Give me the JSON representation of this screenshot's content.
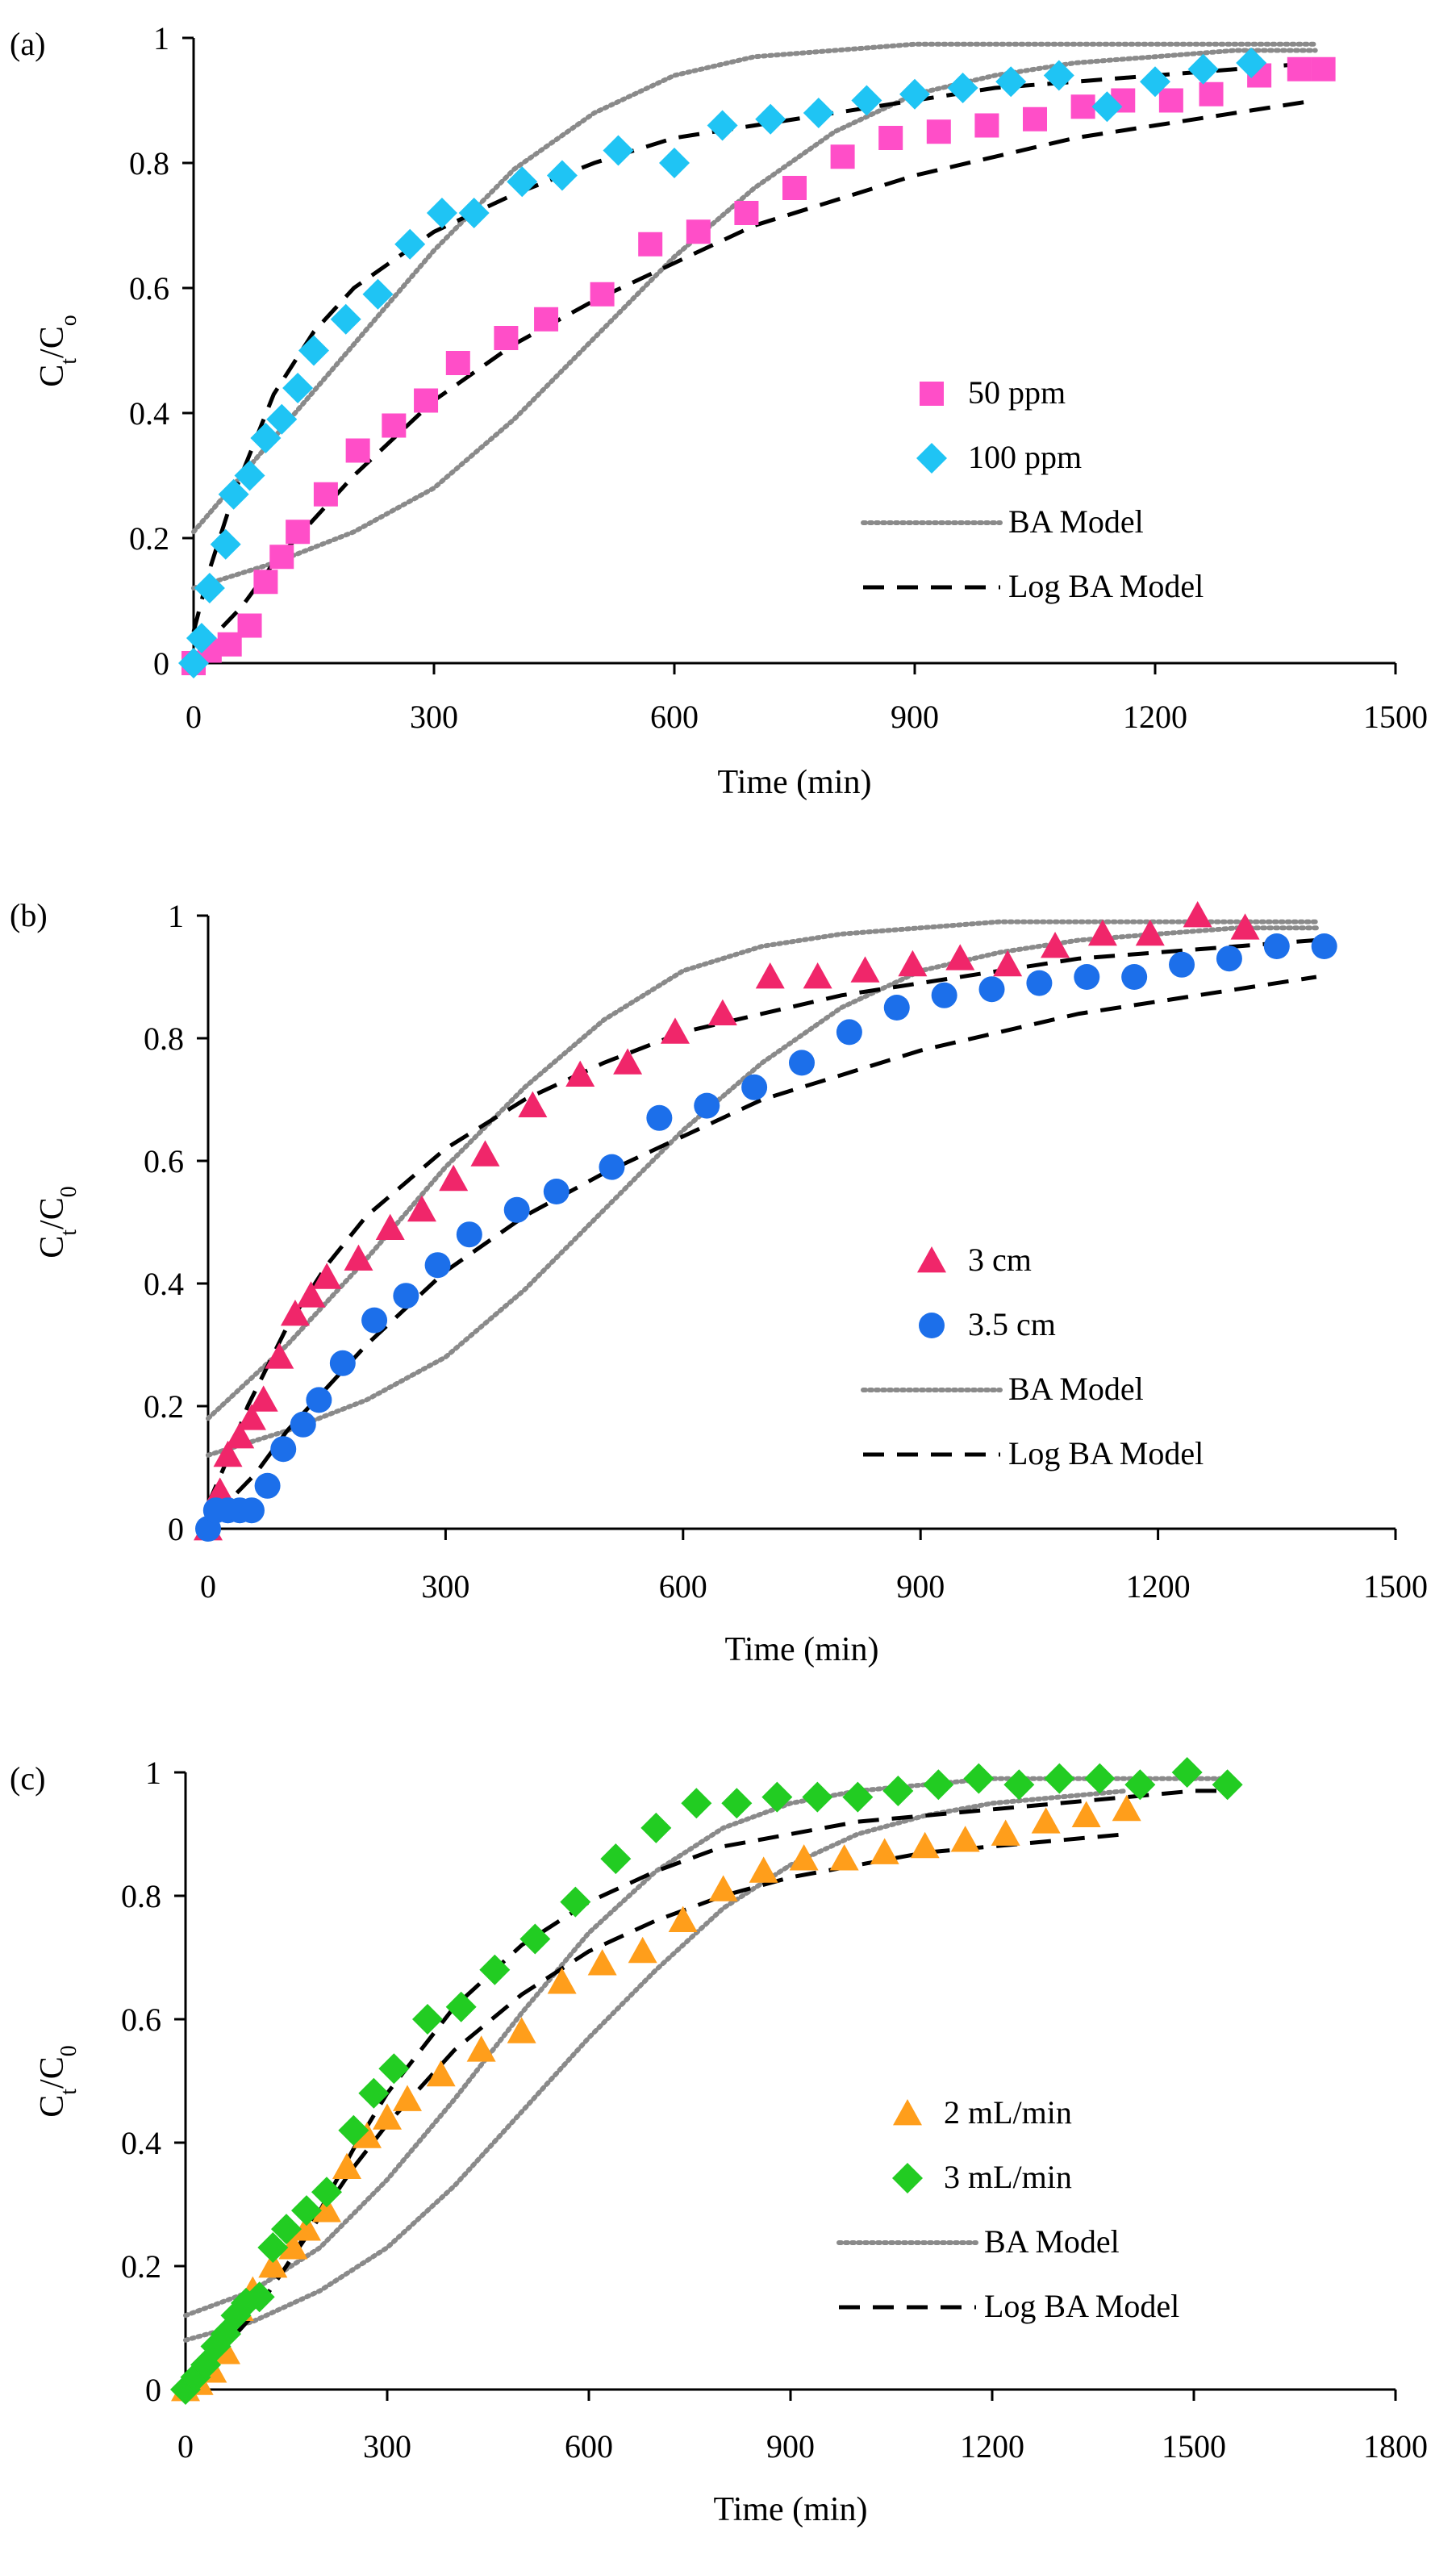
{
  "figure": {
    "panels": [
      "(a)",
      "(b)",
      "(c)"
    ]
  },
  "chart_data": [
    {
      "type": "scatter",
      "panel_label": "(a)",
      "title": "",
      "xlabel": "Time (min)",
      "ylabel_main": "C",
      "ylabel_sub1": "t",
      "ylabel_sep": "/C",
      "ylabel_sub2": "o",
      "xlim": [
        0,
        1500
      ],
      "ylim": [
        0,
        1
      ],
      "xticks": [
        0,
        300,
        600,
        900,
        1200,
        1500
      ],
      "yticks": [
        0,
        0.2,
        0.4,
        0.6,
        0.8,
        1
      ],
      "xtick_labels": [
        "0",
        "300",
        "600",
        "900",
        "1200",
        "1500"
      ],
      "ytick_labels": [
        "0",
        "0.2",
        "0.4",
        "0.6",
        "0.8",
        "1"
      ],
      "legend_position": "right-center",
      "series": [
        {
          "name": "50 ppm",
          "marker": "square",
          "color": "#ff4ec8",
          "x": [
            0,
            20,
            45,
            70,
            90,
            110,
            130,
            165,
            205,
            250,
            290,
            330,
            390,
            440,
            510,
            570,
            630,
            690,
            750,
            810,
            870,
            930,
            990,
            1050,
            1110,
            1160,
            1220,
            1270,
            1330,
            1380,
            1410
          ],
          "y": [
            0,
            0.02,
            0.03,
            0.06,
            0.13,
            0.17,
            0.21,
            0.27,
            0.34,
            0.38,
            0.42,
            0.48,
            0.52,
            0.55,
            0.59,
            0.67,
            0.69,
            0.72,
            0.76,
            0.81,
            0.84,
            0.85,
            0.86,
            0.87,
            0.89,
            0.9,
            0.9,
            0.91,
            0.94,
            0.95,
            0.95
          ]
        },
        {
          "name": "100 ppm",
          "marker": "diamond",
          "color": "#1fc4f4",
          "x": [
            0,
            10,
            20,
            40,
            50,
            70,
            90,
            110,
            130,
            150,
            190,
            230,
            270,
            310,
            350,
            410,
            460,
            530,
            600,
            660,
            720,
            780,
            840,
            900,
            960,
            1020,
            1080,
            1140,
            1200,
            1260,
            1320
          ],
          "y": [
            0,
            0.04,
            0.12,
            0.19,
            0.27,
            0.3,
            0.36,
            0.39,
            0.44,
            0.5,
            0.55,
            0.59,
            0.67,
            0.72,
            0.72,
            0.77,
            0.78,
            0.82,
            0.8,
            0.86,
            0.87,
            0.88,
            0.9,
            0.91,
            0.92,
            0.93,
            0.94,
            0.89,
            0.93,
            0.95,
            0.96
          ]
        },
        {
          "name": "BA Model",
          "line": "dotted",
          "color": "#8a8a8a",
          "x": [
            0,
            100,
            200,
            300,
            400,
            500,
            600,
            700,
            800,
            900,
            1000,
            1100,
            1200,
            1300,
            1400
          ],
          "y": [
            0.12,
            0.16,
            0.21,
            0.28,
            0.39,
            0.52,
            0.65,
            0.76,
            0.85,
            0.91,
            0.94,
            0.96,
            0.97,
            0.98,
            0.98
          ]
        },
        {
          "name": "BA Model (100 ppm)",
          "line": "dotted",
          "color": "#8a8a8a",
          "in_legend": false,
          "x": [
            0,
            100,
            200,
            300,
            400,
            500,
            600,
            700,
            800,
            900,
            1000,
            1100,
            1200,
            1300,
            1400
          ],
          "y": [
            0.21,
            0.36,
            0.51,
            0.66,
            0.79,
            0.88,
            0.94,
            0.97,
            0.98,
            0.99,
            0.99,
            0.99,
            0.99,
            0.99,
            0.99
          ]
        },
        {
          "name": "Log BA Model",
          "line": "dashed",
          "color": "#000000",
          "x": [
            0,
            30,
            60,
            100,
            150,
            200,
            300,
            400,
            500,
            600,
            700,
            800,
            900,
            1000,
            1100,
            1200,
            1300,
            1400
          ],
          "y": [
            0.03,
            0.05,
            0.09,
            0.16,
            0.23,
            0.3,
            0.42,
            0.51,
            0.58,
            0.64,
            0.7,
            0.74,
            0.78,
            0.81,
            0.84,
            0.86,
            0.88,
            0.9
          ]
        },
        {
          "name": "Log BA Model (100 ppm)",
          "line": "dashed",
          "color": "#000000",
          "in_legend": false,
          "x": [
            0,
            20,
            50,
            100,
            150,
            200,
            300,
            400,
            500,
            600,
            700,
            800,
            900,
            1000,
            1100,
            1200,
            1300,
            1400
          ],
          "y": [
            0.05,
            0.15,
            0.27,
            0.43,
            0.53,
            0.6,
            0.69,
            0.75,
            0.8,
            0.84,
            0.86,
            0.88,
            0.9,
            0.92,
            0.93,
            0.94,
            0.95,
            0.96
          ]
        }
      ]
    },
    {
      "type": "scatter",
      "panel_label": "(b)",
      "title": "",
      "xlabel": "Time (min)",
      "ylabel_main": "C",
      "ylabel_sub1": "t",
      "ylabel_sep": "/C",
      "ylabel_sub2": "0",
      "xlim": [
        0,
        1500
      ],
      "ylim": [
        0,
        1
      ],
      "xticks": [
        0,
        300,
        600,
        900,
        1200,
        1500
      ],
      "yticks": [
        0,
        0.2,
        0.4,
        0.6,
        0.8,
        1
      ],
      "xtick_labels": [
        "0",
        "300",
        "600",
        "900",
        "1200",
        "1500"
      ],
      "ytick_labels": [
        "0",
        "0.2",
        "0.4",
        "0.6",
        "0.8",
        "1"
      ],
      "legend_position": "right-center",
      "series": [
        {
          "name": "3 cm",
          "marker": "triangle",
          "color": "#f0266a",
          "x": [
            0,
            15,
            25,
            40,
            55,
            70,
            90,
            110,
            130,
            150,
            190,
            230,
            270,
            310,
            350,
            410,
            470,
            530,
            590,
            650,
            710,
            770,
            830,
            890,
            950,
            1010,
            1070,
            1130,
            1190,
            1250,
            1310
          ],
          "y": [
            0,
            0.06,
            0.12,
            0.15,
            0.18,
            0.21,
            0.28,
            0.35,
            0.38,
            0.41,
            0.44,
            0.49,
            0.52,
            0.57,
            0.61,
            0.69,
            0.74,
            0.76,
            0.81,
            0.84,
            0.9,
            0.9,
            0.91,
            0.92,
            0.93,
            0.92,
            0.95,
            0.97,
            0.97,
            1.0,
            0.98
          ]
        },
        {
          "name": "3.5 cm",
          "marker": "circle",
          "color": "#1c6fea",
          "x": [
            0,
            10,
            25,
            40,
            55,
            75,
            95,
            120,
            140,
            170,
            210,
            250,
            290,
            330,
            390,
            440,
            510,
            570,
            630,
            690,
            750,
            810,
            870,
            930,
            990,
            1050,
            1110,
            1170,
            1230,
            1290,
            1350,
            1410
          ],
          "y": [
            0,
            0.03,
            0.03,
            0.03,
            0.03,
            0.07,
            0.13,
            0.17,
            0.21,
            0.27,
            0.34,
            0.38,
            0.43,
            0.48,
            0.52,
            0.55,
            0.59,
            0.67,
            0.69,
            0.72,
            0.76,
            0.81,
            0.85,
            0.87,
            0.88,
            0.89,
            0.9,
            0.9,
            0.92,
            0.93,
            0.95,
            0.95
          ]
        },
        {
          "name": "BA Model",
          "line": "dotted",
          "color": "#8a8a8a",
          "x": [
            0,
            100,
            200,
            300,
            400,
            500,
            600,
            700,
            800,
            900,
            1000,
            1100,
            1200,
            1300,
            1400
          ],
          "y": [
            0.18,
            0.3,
            0.44,
            0.59,
            0.72,
            0.83,
            0.91,
            0.95,
            0.97,
            0.98,
            0.99,
            0.99,
            0.99,
            0.99,
            0.99
          ]
        },
        {
          "name": "BA Model (3.5 cm)",
          "line": "dotted",
          "color": "#8a8a8a",
          "in_legend": false,
          "x": [
            0,
            100,
            200,
            300,
            400,
            500,
            600,
            700,
            800,
            900,
            1000,
            1100,
            1200,
            1300,
            1400
          ],
          "y": [
            0.12,
            0.16,
            0.21,
            0.28,
            0.39,
            0.52,
            0.65,
            0.76,
            0.85,
            0.91,
            0.94,
            0.96,
            0.97,
            0.98,
            0.98
          ]
        },
        {
          "name": "Log BA Model",
          "line": "dashed",
          "color": "#000000",
          "x": [
            0,
            20,
            50,
            100,
            150,
            200,
            300,
            400,
            500,
            600,
            700,
            800,
            900,
            1000,
            1100,
            1200,
            1300,
            1400
          ],
          "y": [
            0.04,
            0.1,
            0.2,
            0.33,
            0.43,
            0.51,
            0.62,
            0.7,
            0.76,
            0.81,
            0.84,
            0.87,
            0.89,
            0.91,
            0.93,
            0.94,
            0.95,
            0.96
          ]
        },
        {
          "name": "Log BA Model (3.5 cm)",
          "line": "dashed",
          "color": "#000000",
          "in_legend": false,
          "x": [
            0,
            30,
            60,
            100,
            150,
            200,
            300,
            400,
            500,
            600,
            700,
            800,
            900,
            1000,
            1100,
            1200,
            1300,
            1400
          ],
          "y": [
            0.03,
            0.05,
            0.09,
            0.16,
            0.23,
            0.3,
            0.42,
            0.51,
            0.58,
            0.64,
            0.7,
            0.74,
            0.78,
            0.81,
            0.84,
            0.86,
            0.88,
            0.9
          ]
        }
      ]
    },
    {
      "type": "scatter",
      "panel_label": "(c)",
      "title": "",
      "xlabel": "Time (min)",
      "ylabel_main": "C",
      "ylabel_sub1": "t",
      "ylabel_sep": "/C",
      "ylabel_sub2": "0",
      "xlim": [
        0,
        1800
      ],
      "ylim": [
        0,
        1
      ],
      "xticks": [
        0,
        300,
        600,
        900,
        1200,
        1500,
        1800
      ],
      "yticks": [
        0,
        0.2,
        0.4,
        0.6,
        0.8,
        1
      ],
      "xtick_labels": [
        "0",
        "300",
        "600",
        "900",
        "1200",
        "1500",
        "1800"
      ],
      "ytick_labels": [
        "0",
        "0.2",
        "0.4",
        "0.6",
        "0.8",
        "1"
      ],
      "legend_position": "right-center",
      "series": [
        {
          "name": "2 mL/min",
          "marker": "triangle",
          "color": "#ff9e1b",
          "x": [
            0,
            20,
            40,
            60,
            80,
            100,
            130,
            160,
            180,
            210,
            240,
            270,
            300,
            330,
            380,
            440,
            500,
            560,
            620,
            680,
            740,
            800,
            860,
            920,
            980,
            1040,
            1100,
            1160,
            1220,
            1280,
            1340,
            1400
          ],
          "y": [
            0,
            0.01,
            0.03,
            0.06,
            0.13,
            0.16,
            0.2,
            0.23,
            0.26,
            0.29,
            0.36,
            0.41,
            0.44,
            0.47,
            0.51,
            0.55,
            0.58,
            0.66,
            0.69,
            0.71,
            0.76,
            0.81,
            0.84,
            0.86,
            0.86,
            0.87,
            0.88,
            0.89,
            0.9,
            0.92,
            0.93,
            0.94
          ]
        },
        {
          "name": "3 mL/min",
          "marker": "diamond",
          "color": "#22cc22",
          "x": [
            0,
            15,
            30,
            45,
            60,
            75,
            90,
            110,
            130,
            150,
            180,
            210,
            250,
            280,
            310,
            360,
            410,
            460,
            520,
            580,
            640,
            700,
            760,
            820,
            880,
            940,
            1000,
            1060,
            1120,
            1180,
            1240,
            1300,
            1360,
            1420,
            1490,
            1550
          ],
          "y": [
            0,
            0.02,
            0.04,
            0.07,
            0.09,
            0.12,
            0.14,
            0.15,
            0.23,
            0.26,
            0.29,
            0.32,
            0.42,
            0.48,
            0.52,
            0.6,
            0.62,
            0.68,
            0.73,
            0.79,
            0.86,
            0.91,
            0.95,
            0.95,
            0.96,
            0.96,
            0.96,
            0.97,
            0.98,
            0.99,
            0.98,
            0.99,
            0.99,
            0.98,
            1.0,
            0.98
          ]
        },
        {
          "name": "BA Model",
          "line": "dotted",
          "color": "#8a8a8a",
          "x": [
            0,
            100,
            200,
            300,
            400,
            500,
            600,
            700,
            800,
            900,
            1000,
            1100,
            1200,
            1300,
            1400,
            1500,
            1550
          ],
          "y": [
            0.12,
            0.16,
            0.23,
            0.34,
            0.47,
            0.61,
            0.74,
            0.84,
            0.91,
            0.95,
            0.97,
            0.98,
            0.99,
            0.99,
            0.99,
            0.99,
            0.99
          ]
        },
        {
          "name": "BA Model (2 mL/min)",
          "line": "dotted",
          "color": "#8a8a8a",
          "in_legend": false,
          "x": [
            0,
            100,
            200,
            300,
            400,
            500,
            600,
            700,
            800,
            900,
            1000,
            1100,
            1200,
            1300,
            1400
          ],
          "y": [
            0.08,
            0.11,
            0.16,
            0.23,
            0.33,
            0.45,
            0.57,
            0.68,
            0.78,
            0.85,
            0.9,
            0.93,
            0.95,
            0.96,
            0.97
          ]
        },
        {
          "name": "Log BA Model",
          "line": "dashed",
          "color": "#000000",
          "x": [
            0,
            50,
            100,
            150,
            200,
            250,
            300,
            400,
            500,
            600,
            700,
            800,
            900,
            1000,
            1100,
            1200,
            1300,
            1400,
            1500,
            1550
          ],
          "y": [
            0.02,
            0.06,
            0.12,
            0.2,
            0.29,
            0.39,
            0.48,
            0.62,
            0.72,
            0.79,
            0.84,
            0.88,
            0.9,
            0.92,
            0.93,
            0.94,
            0.95,
            0.96,
            0.97,
            0.97
          ]
        },
        {
          "name": "Log BA Model (2 mL/min)",
          "line": "dashed",
          "color": "#000000",
          "in_legend": false,
          "x": [
            0,
            50,
            100,
            150,
            200,
            250,
            300,
            400,
            500,
            600,
            700,
            800,
            900,
            1000,
            1100,
            1200,
            1300,
            1400
          ],
          "y": [
            0.02,
            0.06,
            0.12,
            0.2,
            0.28,
            0.36,
            0.43,
            0.55,
            0.64,
            0.71,
            0.76,
            0.8,
            0.83,
            0.85,
            0.87,
            0.88,
            0.89,
            0.9
          ]
        }
      ]
    }
  ]
}
